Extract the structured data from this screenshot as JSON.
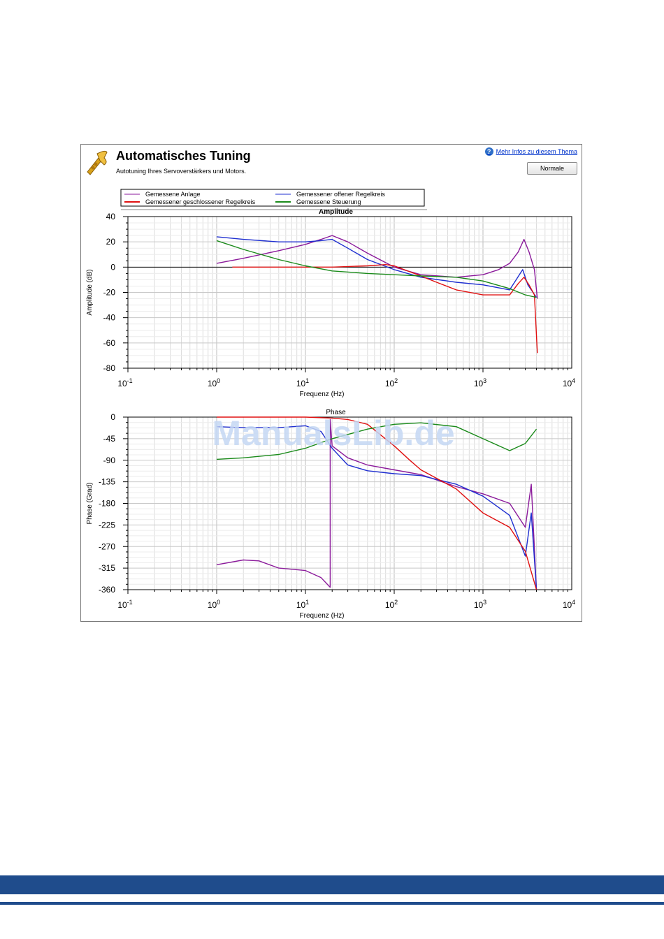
{
  "window": {
    "title": "Automatisches Tuning",
    "subtitle": "Autotuning Ihres Servoverstärkers und Motors.",
    "help_link": "Mehr Infos zu diesem Thema",
    "normal_button": "Normale"
  },
  "watermark": "ManualsLib.de",
  "colors": {
    "anlage": "#8b1a9b",
    "offen": "#1f2fd0",
    "geschlossen": "#e01010",
    "steuerung": "#1a8a1a",
    "footer": "#1f4c8c"
  },
  "chart_data": [
    {
      "type": "line",
      "title": "Amplitude",
      "xlabel": "Frequenz (Hz)",
      "ylabel": "Amplitude (dB)",
      "xscale": "log",
      "xlim": [
        0.1,
        10000
      ],
      "ylim": [
        -80,
        40
      ],
      "yticks": [
        40,
        20,
        0,
        -20,
        -40,
        -60,
        -80
      ],
      "xticks": [
        "10-1",
        "100",
        "101",
        "102",
        "103",
        "104"
      ],
      "grid": true,
      "legend": [
        {
          "name": "Gemessene Anlage",
          "key": "anlage"
        },
        {
          "name": "Gemessener offener Regelkreis",
          "key": "offen"
        },
        {
          "name": "Gemessener geschlossener Regelkreis",
          "key": "geschlossen"
        },
        {
          "name": "Gemessene Steuerung",
          "key": "steuerung"
        }
      ],
      "series": [
        {
          "key": "anlage",
          "x": [
            1,
            2,
            5,
            10,
            15,
            20,
            30,
            50,
            100,
            200,
            500,
            1000,
            1500,
            2000,
            2500,
            2900,
            3300,
            3800,
            4100
          ],
          "y": [
            3,
            7,
            13,
            18,
            22,
            25,
            20,
            11,
            0,
            -6,
            -8,
            -6,
            -2,
            3,
            12,
            22,
            12,
            -2,
            -25
          ]
        },
        {
          "key": "offen",
          "x": [
            1,
            2,
            5,
            10,
            15,
            20,
            30,
            50,
            100,
            200,
            500,
            1000,
            2000,
            2800,
            3200,
            4000
          ],
          "y": [
            24,
            22,
            20,
            20,
            21,
            22,
            15,
            6,
            -2,
            -8,
            -12,
            -14,
            -18,
            -2,
            -14,
            -24
          ]
        },
        {
          "key": "geschlossen",
          "x": [
            1.5,
            5,
            10,
            20,
            50,
            80,
            100,
            200,
            300,
            500,
            1000,
            2000,
            2500,
            2900,
            3300,
            3800,
            4100
          ],
          "y": [
            0,
            0,
            0,
            0,
            1,
            2,
            1,
            -7,
            -12,
            -18,
            -22,
            -22,
            -13,
            -8,
            -14,
            -22,
            -68
          ]
        },
        {
          "key": "steuerung",
          "x": [
            1,
            2,
            5,
            10,
            20,
            50,
            100,
            200,
            500,
            1000,
            2000,
            3000,
            4000
          ],
          "y": [
            21,
            14,
            6,
            1,
            -3,
            -5,
            -6,
            -7,
            -8,
            -11,
            -17,
            -22,
            -24
          ]
        }
      ]
    },
    {
      "type": "line",
      "title": "Phase",
      "xlabel": "Frequenz (Hz)",
      "ylabel": "Phase (Grad)",
      "xscale": "log",
      "xlim": [
        0.1,
        10000
      ],
      "ylim": [
        -360,
        0
      ],
      "yticks": [
        0,
        -45,
        -90,
        -135,
        -180,
        -225,
        -270,
        -315,
        -360
      ],
      "xticks": [
        "10-1",
        "100",
        "101",
        "102",
        "103",
        "104"
      ],
      "grid": true,
      "series": [
        {
          "key": "anlage",
          "x": [
            1,
            2,
            3,
            5,
            10,
            15,
            19,
            19,
            20,
            30,
            50,
            100,
            200,
            500,
            1000,
            2000,
            3000,
            3500,
            4000
          ],
          "y": [
            -308,
            -298,
            -300,
            -315,
            -320,
            -335,
            -355,
            -5,
            -60,
            -85,
            -100,
            -110,
            -120,
            -145,
            -160,
            -180,
            -230,
            -140,
            -360
          ]
        },
        {
          "key": "offen",
          "x": [
            1,
            2,
            5,
            10,
            15,
            20,
            30,
            50,
            100,
            200,
            500,
            1000,
            2000,
            3000,
            3500,
            4000
          ],
          "y": [
            -20,
            -22,
            -22,
            -18,
            -30,
            -65,
            -100,
            -112,
            -118,
            -122,
            -140,
            -165,
            -205,
            -290,
            -200,
            -360
          ]
        },
        {
          "key": "geschlossen",
          "x": [
            1,
            5,
            10,
            20,
            30,
            50,
            100,
            150,
            200,
            500,
            1000,
            2000,
            3000,
            4000
          ],
          "y": [
            0,
            0,
            0,
            -2,
            -5,
            -15,
            -60,
            -90,
            -110,
            -150,
            -200,
            -230,
            -280,
            -360
          ]
        },
        {
          "key": "steuerung",
          "x": [
            1,
            2,
            5,
            10,
            20,
            50,
            100,
            200,
            500,
            1000,
            2000,
            3000,
            4000
          ],
          "y": [
            -88,
            -85,
            -78,
            -65,
            -45,
            -25,
            -15,
            -12,
            -20,
            -45,
            -70,
            -55,
            -25
          ]
        }
      ]
    }
  ]
}
